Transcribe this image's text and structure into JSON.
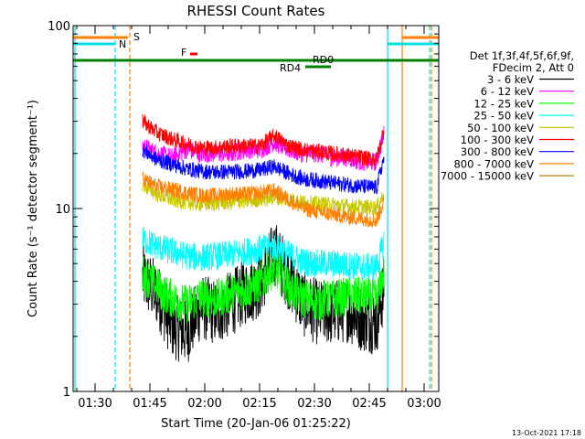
{
  "chart_data": {
    "type": "line",
    "title": "RHESSI Count Rates",
    "xlabel": "Start Time (20-Jan-06 01:25:22)",
    "ylabel": "Count Rate (s⁻¹ detector segment⁻¹)",
    "y_scale": "log",
    "ylim": [
      1,
      100
    ],
    "xlim_minutes_after_0125": [
      -1,
      99
    ],
    "y_ticks": [
      "1",
      "10",
      "100"
    ],
    "x_ticks": [
      {
        "label": "01:30",
        "t": 5
      },
      {
        "label": "01:45",
        "t": 20
      },
      {
        "label": "02:00",
        "t": 35
      },
      {
        "label": "02:15",
        "t": 50
      },
      {
        "label": "02:30",
        "t": 65
      },
      {
        "label": "02:45",
        "t": 80
      },
      {
        "label": "03:00",
        "t": 95
      }
    ],
    "legend_header": [
      "Det 1f,3f,4f,5f,6f,9f,",
      "FDecim 2, Att 0"
    ],
    "series": [
      {
        "name": "3 - 6 keV",
        "color": "#000000",
        "points": [
          [
            18,
            4.2
          ],
          [
            22,
            3.4
          ],
          [
            26,
            2.3
          ],
          [
            30,
            2.1
          ],
          [
            34,
            2.9
          ],
          [
            38,
            2.7
          ],
          [
            42,
            3.0
          ],
          [
            46,
            3.5
          ],
          [
            50,
            3.8
          ],
          [
            54,
            5.8
          ],
          [
            58,
            4.2
          ],
          [
            62,
            3.0
          ],
          [
            66,
            2.7
          ],
          [
            70,
            2.7
          ],
          [
            74,
            2.8
          ],
          [
            78,
            2.5
          ],
          [
            82,
            2.4
          ],
          [
            84,
            3.6
          ]
        ]
      },
      {
        "name": "6 - 12 keV",
        "color": "#ff00ff",
        "points": [
          [
            18,
            22
          ],
          [
            22,
            20
          ],
          [
            26,
            19
          ],
          [
            30,
            21
          ],
          [
            34,
            20
          ],
          [
            38,
            20
          ],
          [
            42,
            20
          ],
          [
            46,
            21
          ],
          [
            50,
            21
          ],
          [
            54,
            23
          ],
          [
            58,
            21
          ],
          [
            62,
            20
          ],
          [
            66,
            20
          ],
          [
            70,
            19
          ],
          [
            74,
            19
          ],
          [
            78,
            18
          ],
          [
            82,
            18
          ],
          [
            84,
            26
          ]
        ]
      },
      {
        "name": "12 - 25 keV",
        "color": "#00ff00",
        "points": [
          [
            18,
            4.4
          ],
          [
            22,
            3.7
          ],
          [
            26,
            3.2
          ],
          [
            30,
            3.0
          ],
          [
            34,
            3.3
          ],
          [
            38,
            3.2
          ],
          [
            42,
            3.4
          ],
          [
            46,
            3.6
          ],
          [
            50,
            3.9
          ],
          [
            54,
            4.8
          ],
          [
            58,
            3.7
          ],
          [
            62,
            3.2
          ],
          [
            66,
            3.1
          ],
          [
            70,
            3.2
          ],
          [
            74,
            3.3
          ],
          [
            78,
            3.3
          ],
          [
            82,
            3.2
          ],
          [
            84,
            4.5
          ]
        ]
      },
      {
        "name": "25 - 50 keV",
        "color": "#00ffff",
        "points": [
          [
            18,
            6.8
          ],
          [
            22,
            6.2
          ],
          [
            26,
            5.8
          ],
          [
            30,
            5.5
          ],
          [
            34,
            5.4
          ],
          [
            38,
            5.5
          ],
          [
            42,
            5.6
          ],
          [
            46,
            5.8
          ],
          [
            50,
            6.0
          ],
          [
            54,
            6.2
          ],
          [
            58,
            5.6
          ],
          [
            62,
            5.1
          ],
          [
            66,
            5.0
          ],
          [
            70,
            5.0
          ],
          [
            74,
            4.9
          ],
          [
            78,
            4.8
          ],
          [
            82,
            4.8
          ],
          [
            84,
            6.5
          ]
        ]
      },
      {
        "name": "50 - 100 keV",
        "color": "#c8c800",
        "points": [
          [
            18,
            13.5
          ],
          [
            22,
            12.0
          ],
          [
            26,
            11.2
          ],
          [
            30,
            10.8
          ],
          [
            34,
            10.6
          ],
          [
            38,
            10.7
          ],
          [
            42,
            10.8
          ],
          [
            46,
            11.0
          ],
          [
            50,
            11.2
          ],
          [
            54,
            11.5
          ],
          [
            58,
            11.2
          ],
          [
            62,
            10.8
          ],
          [
            66,
            10.6
          ],
          [
            70,
            10.5
          ],
          [
            74,
            10.3
          ],
          [
            78,
            10.2
          ],
          [
            82,
            10.1
          ],
          [
            84,
            12.0
          ]
        ]
      },
      {
        "name": "100 - 300 keV",
        "color": "#ff0000",
        "points": [
          [
            18,
            30
          ],
          [
            22,
            26
          ],
          [
            26,
            24
          ],
          [
            30,
            22.5
          ],
          [
            34,
            21.5
          ],
          [
            38,
            21.5
          ],
          [
            42,
            22
          ],
          [
            46,
            22
          ],
          [
            50,
            22
          ],
          [
            54,
            25
          ],
          [
            58,
            22
          ],
          [
            62,
            21
          ],
          [
            66,
            20.5
          ],
          [
            70,
            20
          ],
          [
            74,
            19.5
          ],
          [
            78,
            19
          ],
          [
            82,
            18.5
          ],
          [
            84,
            27
          ]
        ]
      },
      {
        "name": "300 - 800 keV",
        "color": "#0000ff",
        "points": [
          [
            18,
            21
          ],
          [
            22,
            18.5
          ],
          [
            26,
            17.5
          ],
          [
            30,
            16.5
          ],
          [
            34,
            16.0
          ],
          [
            38,
            15.8
          ],
          [
            42,
            15.9
          ],
          [
            46,
            16.0
          ],
          [
            50,
            16.2
          ],
          [
            54,
            17.0
          ],
          [
            58,
            15.5
          ],
          [
            62,
            14.5
          ],
          [
            66,
            14.2
          ],
          [
            70,
            13.8
          ],
          [
            74,
            13.5
          ],
          [
            78,
            13.2
          ],
          [
            82,
            13.0
          ],
          [
            84,
            19
          ]
        ]
      },
      {
        "name": "800 - 7000 keV",
        "color": "#ff8000",
        "points": [
          [
            18,
            14.5
          ],
          [
            22,
            13.2
          ],
          [
            26,
            12.7
          ],
          [
            30,
            12.2
          ],
          [
            34,
            11.8
          ],
          [
            38,
            11.8
          ],
          [
            42,
            12.0
          ],
          [
            46,
            12.0
          ],
          [
            50,
            12.2
          ],
          [
            54,
            12.5
          ],
          [
            58,
            11.2
          ],
          [
            62,
            10.0
          ],
          [
            66,
            9.6
          ],
          [
            70,
            9.3
          ],
          [
            74,
            9.0
          ],
          [
            78,
            8.8
          ],
          [
            82,
            8.6
          ],
          [
            84,
            11.0
          ]
        ]
      },
      {
        "name": "7000 - 15000 keV",
        "color": "#b8860b",
        "points": []
      }
    ],
    "annotations": [
      {
        "text": "S",
        "color": "#ff8000"
      },
      {
        "text": "N",
        "color": "#00e0e0"
      },
      {
        "text": "F",
        "color": "#ff0000"
      },
      {
        "text": "RD0",
        "color": "#008000"
      },
      {
        "text": "RD4",
        "color": "#008000"
      }
    ],
    "timestamp": "13-Oct-2021 17:18"
  }
}
